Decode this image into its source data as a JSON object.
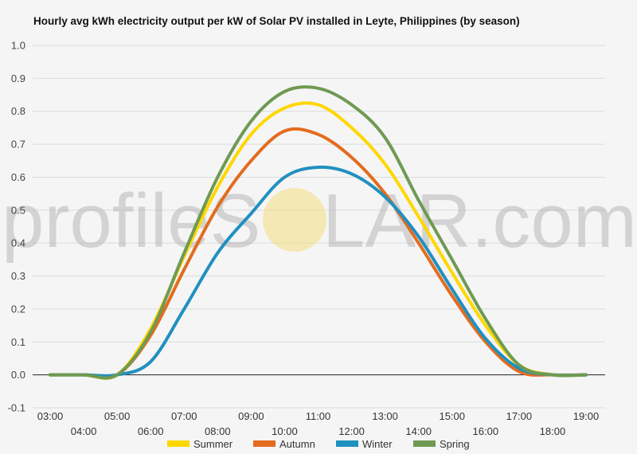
{
  "chart_data": {
    "type": "line",
    "title": "Hourly avg kWh electricity output per kW of Solar PV installed in Leyte, Philippines (by season)",
    "xlabel": "",
    "ylabel": "",
    "x": [
      "03:00",
      "04:00",
      "05:00",
      "06:00",
      "07:00",
      "08:00",
      "09:00",
      "10:00",
      "11:00",
      "12:00",
      "13:00",
      "14:00",
      "15:00",
      "16:00",
      "17:00",
      "18:00",
      "19:00"
    ],
    "ylim": [
      -0.1,
      1.0
    ],
    "yticks": [
      "-0.1",
      "0.0",
      "0.1",
      "0.2",
      "0.3",
      "0.4",
      "0.5",
      "0.6",
      "0.7",
      "0.8",
      "0.9",
      "1.0"
    ],
    "grid": true,
    "legend_position": "bottom",
    "watermark": "profileSOLAR.com",
    "series": [
      {
        "name": "Summer",
        "color": "#ffd700",
        "values": [
          0.0,
          0.0,
          0.0,
          0.14,
          0.36,
          0.57,
          0.73,
          0.81,
          0.82,
          0.75,
          0.64,
          0.48,
          0.31,
          0.15,
          0.03,
          0.0,
          0.0
        ]
      },
      {
        "name": "Autumn",
        "color": "#e36c1e",
        "values": [
          0.0,
          0.0,
          0.0,
          0.12,
          0.32,
          0.51,
          0.65,
          0.74,
          0.73,
          0.66,
          0.55,
          0.4,
          0.24,
          0.1,
          0.01,
          0.0,
          0.0
        ]
      },
      {
        "name": "Winter",
        "color": "#2090c0",
        "values": [
          0.0,
          0.0,
          0.0,
          0.04,
          0.2,
          0.37,
          0.49,
          0.6,
          0.63,
          0.61,
          0.54,
          0.42,
          0.26,
          0.11,
          0.02,
          0.0,
          0.0
        ]
      },
      {
        "name": "Spring",
        "color": "#6f9a52",
        "values": [
          0.0,
          0.0,
          0.0,
          0.13,
          0.37,
          0.6,
          0.77,
          0.86,
          0.87,
          0.82,
          0.72,
          0.53,
          0.35,
          0.17,
          0.03,
          0.0,
          0.0
        ]
      }
    ]
  }
}
